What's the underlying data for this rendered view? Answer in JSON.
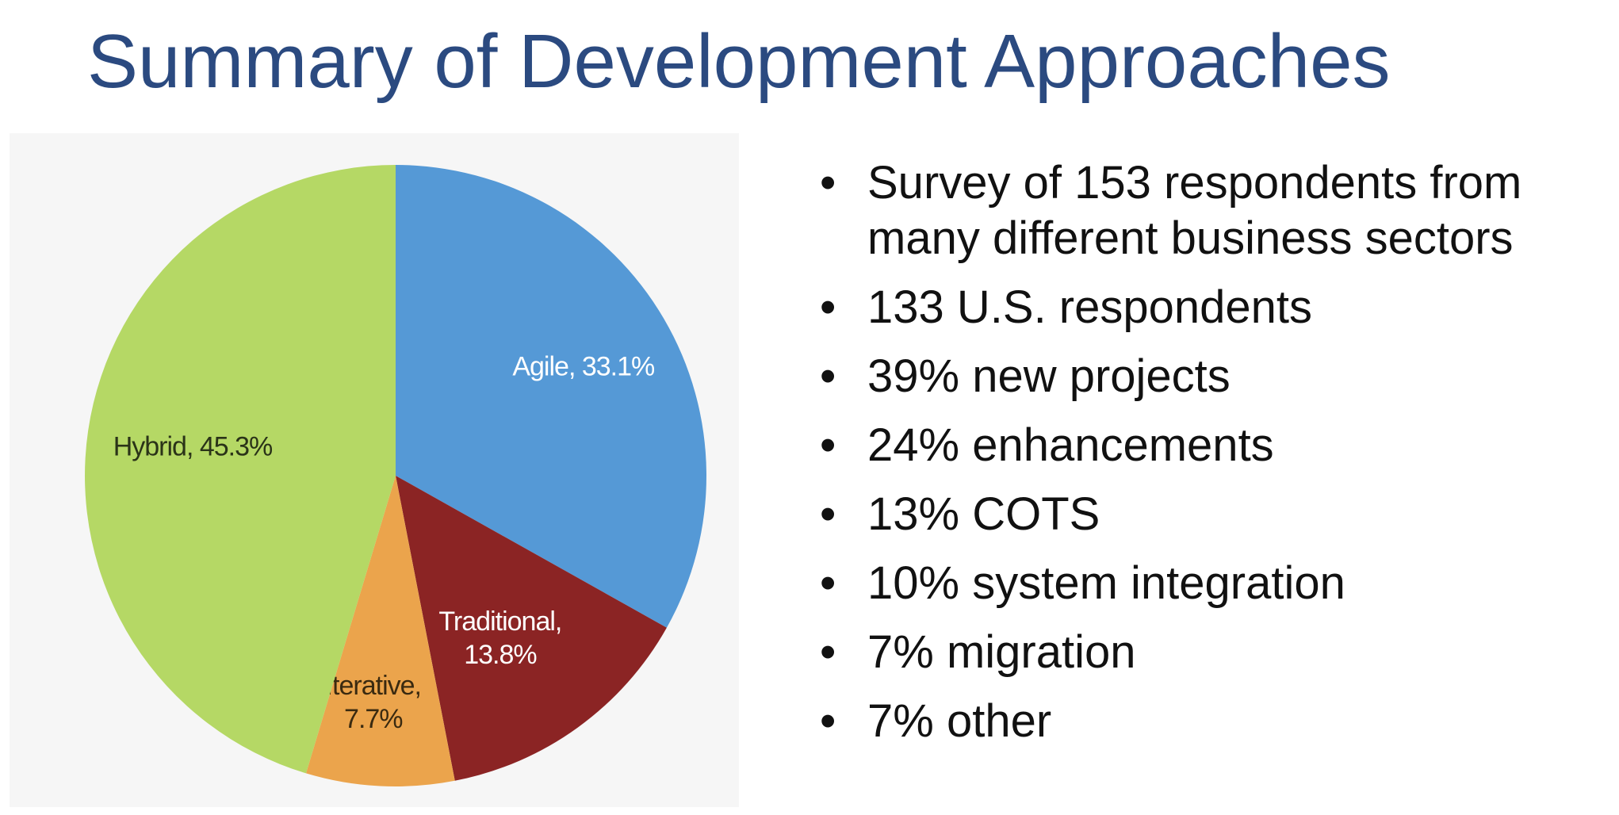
{
  "slide": {
    "title": "Summary of Development Approaches"
  },
  "bullets": [
    "Survey of 153 respondents from many different business sectors",
    "133 U.S. respondents",
    "39% new projects",
    "24% enhancements",
    "13% COTS",
    "10% system integration",
    "7% migration",
    "7% other"
  ],
  "chart_data": {
    "type": "pie",
    "title": "",
    "slices": [
      {
        "category": "Agile",
        "value": 33.1,
        "label_lines": [
          "Agile, 33.1%"
        ],
        "color": "#5599d6",
        "label_color": "#ffffff"
      },
      {
        "category": "Traditional",
        "value": 13.8,
        "label_lines": [
          "Traditional,",
          "13.8%"
        ],
        "color": "#8b2424",
        "label_color": "#ffffff"
      },
      {
        "category": "Iterative",
        "value": 7.7,
        "label_lines": [
          "Iterative,",
          "7.7%"
        ],
        "color": "#eba44c",
        "label_color": "#3a2a10"
      },
      {
        "category": "Hybrid",
        "value": 45.3,
        "label_lines": [
          "Hybrid, 45.3%"
        ],
        "color": "#b5d865",
        "label_color": "#2a3318"
      }
    ],
    "start": "12 o'clock",
    "direction": "clockwise",
    "legend": "none"
  }
}
